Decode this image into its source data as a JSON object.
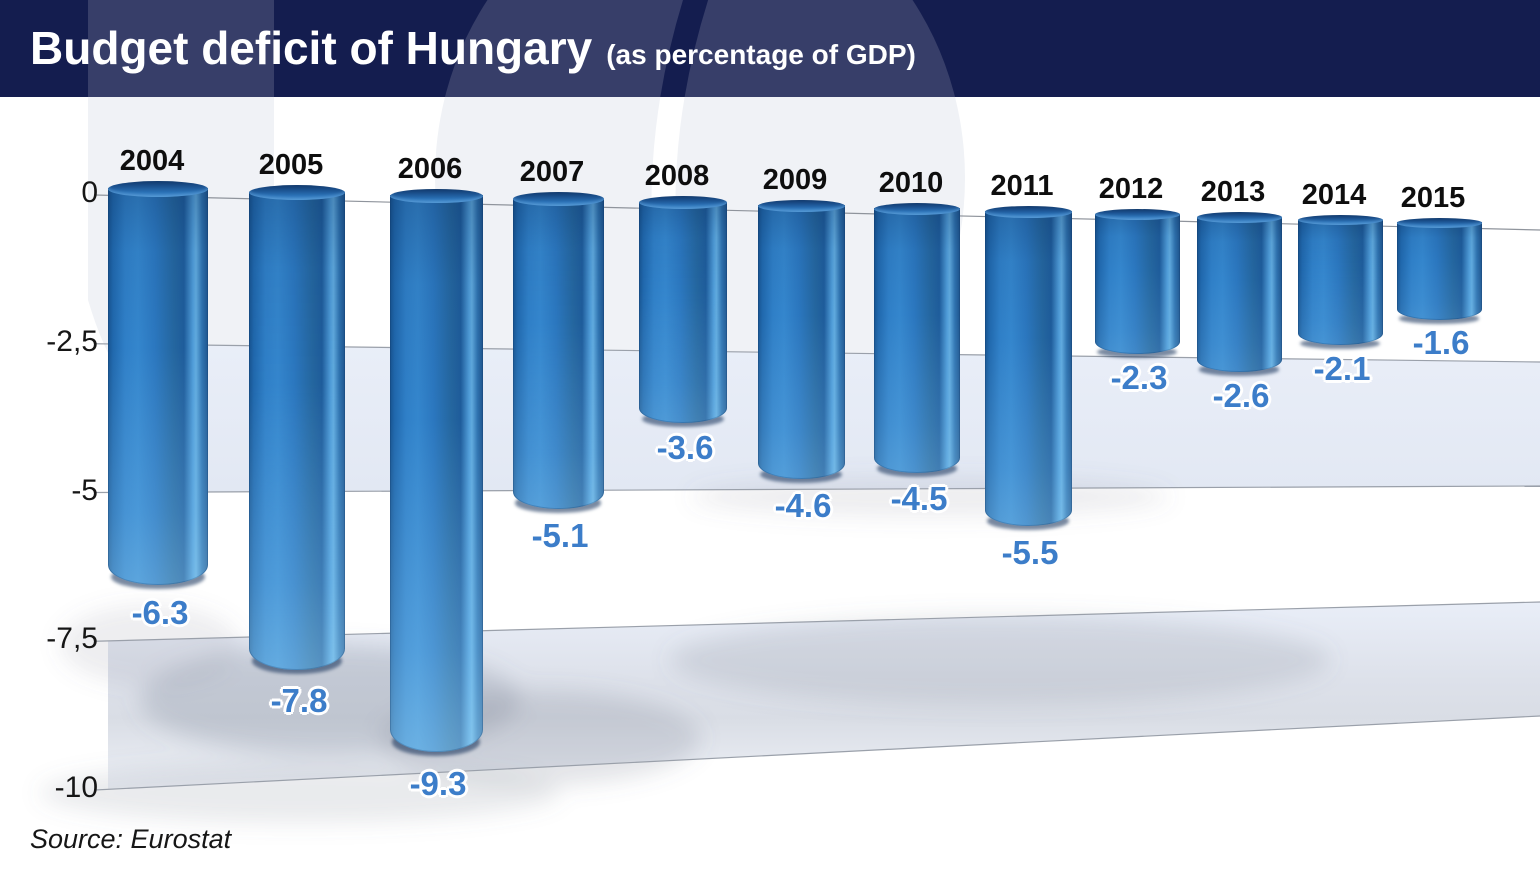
{
  "header": {
    "title": "Budget deficit of Hungary",
    "subtitle": "(as percentage of GDP)",
    "background_color": "#141d4f"
  },
  "source_note": "Source: Eurostat",
  "chart_data": {
    "type": "bar",
    "title": "Budget deficit of Hungary",
    "subtitle": "(as percentage of GDP)",
    "unit": "percent of GDP",
    "categories": [
      "2004",
      "2005",
      "2006",
      "2007",
      "2008",
      "2009",
      "2010",
      "2011",
      "2012",
      "2013",
      "2014",
      "2015"
    ],
    "values": [
      -6.3,
      -7.8,
      -9.3,
      -5.1,
      -3.6,
      -4.6,
      -4.5,
      -5.5,
      -2.3,
      -2.6,
      -2.1,
      -1.6
    ],
    "value_labels": [
      "-6.3",
      "-7.8",
      "-9.3",
      "-5.1",
      "-3.6",
      "-4.6",
      "-4.5",
      "-5.5",
      "-2.3",
      "-2.6",
      "-2.1",
      "-1.6"
    ],
    "y_ticks": [
      {
        "value": 0,
        "label": "0"
      },
      {
        "value": -2.5,
        "label": "-2,5"
      },
      {
        "value": -5,
        "label": "-5"
      },
      {
        "value": -7.5,
        "label": "-7,5"
      },
      {
        "value": -10,
        "label": "-10"
      }
    ],
    "ylim": [
      -10,
      0
    ],
    "xlabel": "",
    "ylabel": "",
    "grid": "horizontal_perspective_bands",
    "legend": "none",
    "source": "Source: Eurostat",
    "colors": {
      "bar_main": "#2e7ac1",
      "bar_deep_light": "#4aa5dc",
      "value_label": "#3c7dc9",
      "year_label": "#0e0e0e",
      "band_fill": "#e7ecf5",
      "gridline": "#9aa0aa",
      "header_navy": "#141d4f",
      "watermark_gray": "#f0f2f6"
    }
  }
}
